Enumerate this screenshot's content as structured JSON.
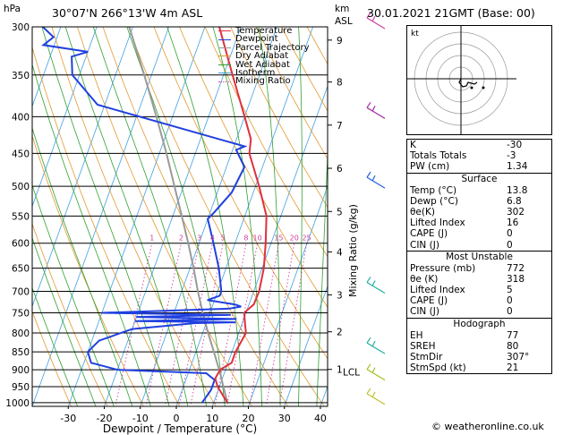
{
  "header": {
    "hpa_label": "hPa",
    "location": "30°07'N  266°13'W  4m  ASL",
    "km_label": "km",
    "asl_label": "ASL",
    "datetime": "30.01.2021  21GMT  (Base: 00)"
  },
  "chart_data": {
    "type": "skew-t log-p",
    "xlabel": "Dewpoint / Temperature (°C)",
    "ylabel": "Mixing Ratio (g/kg)",
    "pressure_levels": [
      300,
      350,
      400,
      450,
      500,
      550,
      600,
      650,
      700,
      750,
      800,
      850,
      900,
      950,
      1000
    ],
    "temp_ticks": [
      -30,
      -20,
      -10,
      0,
      10,
      20,
      30,
      40
    ],
    "xlim": [
      -40,
      42
    ],
    "ylim": [
      1012,
      300
    ],
    "height_ticks_km": [
      {
        "label": "9",
        "p": 313
      },
      {
        "label": "8",
        "p": 358
      },
      {
        "label": "7",
        "p": 411
      },
      {
        "label": "6",
        "p": 472
      },
      {
        "label": "5",
        "p": 542
      },
      {
        "label": "4",
        "p": 617
      },
      {
        "label": "3",
        "p": 708
      },
      {
        "label": "2",
        "p": 797
      },
      {
        "label": "1",
        "p": 899
      }
    ],
    "lcl": {
      "label": "LCL",
      "p": 906
    },
    "mixing_ratios": [
      1,
      2,
      3,
      4,
      5,
      8,
      10,
      15,
      20,
      25
    ],
    "mixing_ratio_label_p": 600,
    "temperature": [
      [
        1000,
        13.8
      ],
      [
        950,
        9.5
      ],
      [
        925,
        8
      ],
      [
        900,
        8.5
      ],
      [
        880,
        11
      ],
      [
        850,
        11
      ],
      [
        800,
        12
      ],
      [
        780,
        11
      ],
      [
        750,
        9.5
      ],
      [
        730,
        11.3
      ],
      [
        700,
        11.5
      ],
      [
        650,
        10.5
      ],
      [
        600,
        8.5
      ],
      [
        550,
        6
      ],
      [
        500,
        1
      ],
      [
        450,
        -5
      ],
      [
        430,
        -6
      ],
      [
        400,
        -10
      ],
      [
        350,
        -17.5
      ],
      [
        300,
        -26
      ]
    ],
    "dewpoint": [
      [
        1000,
        6.8
      ],
      [
        960,
        8
      ],
      [
        930,
        8
      ],
      [
        910,
        5
      ],
      [
        900,
        -20
      ],
      [
        880,
        -28
      ],
      [
        850,
        -30
      ],
      [
        820,
        -28
      ],
      [
        790,
        -20
      ],
      [
        775,
        -3
      ],
      [
        773,
        8
      ],
      [
        770,
        -20
      ],
      [
        765,
        8
      ],
      [
        760,
        -20
      ],
      [
        755,
        6
      ],
      [
        750,
        -30
      ],
      [
        740,
        5
      ],
      [
        735,
        8
      ],
      [
        730,
        6
      ],
      [
        720,
        -2
      ],
      [
        710,
        1
      ],
      [
        700,
        1
      ],
      [
        650,
        -2
      ],
      [
        600,
        -6
      ],
      [
        555,
        -10
      ],
      [
        545,
        -9
      ],
      [
        510,
        -6
      ],
      [
        470,
        -5
      ],
      [
        445,
        -9
      ],
      [
        440,
        -7
      ],
      [
        385,
        -52
      ],
      [
        350,
        -62
      ],
      [
        330,
        -64
      ],
      [
        325,
        -60
      ],
      [
        318,
        -73
      ],
      [
        310,
        -71
      ],
      [
        300,
        -75
      ]
    ],
    "parcel": [
      [
        1000,
        13.8
      ],
      [
        906,
        8.6
      ],
      [
        850,
        5
      ],
      [
        800,
        1.5
      ],
      [
        750,
        -2
      ],
      [
        700,
        -5.5
      ],
      [
        650,
        -9
      ],
      [
        600,
        -13
      ],
      [
        550,
        -17.5
      ],
      [
        500,
        -22.5
      ],
      [
        450,
        -28
      ],
      [
        400,
        -34.5
      ],
      [
        350,
        -42
      ],
      [
        300,
        -51
      ]
    ],
    "legend": [
      {
        "name": "Temperature",
        "color": "#e0303c",
        "style": "solid"
      },
      {
        "name": "Dewpoint",
        "color": "#2040e0",
        "style": "solid"
      },
      {
        "name": "Parcel Trajectory",
        "color": "#9a9a9a",
        "style": "solid"
      },
      {
        "name": "Dry Adiabat",
        "color": "#e09a30",
        "style": "solid"
      },
      {
        "name": "Wet Adiabat",
        "color": "#30a030",
        "style": "solid"
      },
      {
        "name": "Isotherm",
        "color": "#40a0e0",
        "style": "solid"
      },
      {
        "name": "Mixing Ratio",
        "color": "#d040a0",
        "style": "dotted"
      }
    ],
    "wind_barbs": [
      {
        "p": 300,
        "color": "#d040a0"
      },
      {
        "p": 400,
        "color": "#a030a0"
      },
      {
        "p": 500,
        "color": "#2060e0"
      },
      {
        "p": 700,
        "color": "#20b0a0"
      },
      {
        "p": 850,
        "color": "#20b0a0"
      },
      {
        "p": 925,
        "color": "#a0c020"
      },
      {
        "p": 1000,
        "color": "#c0c030"
      }
    ]
  },
  "hodograph": {
    "unit_label": "kt",
    "points": [
      [
        0,
        0
      ],
      [
        -2,
        -4
      ],
      [
        2,
        -9
      ],
      [
        6,
        -8
      ],
      [
        8,
        -4
      ],
      [
        15,
        -6
      ],
      [
        18,
        -4
      ]
    ],
    "storm": [
      [
        12,
        -10
      ],
      [
        25,
        -10
      ]
    ]
  },
  "stats": {
    "rows1": [
      {
        "k": "K",
        "v": "-30"
      },
      {
        "k": "Totals Totals",
        "v": "-3"
      },
      {
        "k": "PW (cm)",
        "v": "1.34"
      }
    ],
    "surface_title": "Surface",
    "surface": [
      {
        "k": "Temp (°C)",
        "v": "13.8"
      },
      {
        "k": "Dewp (°C)",
        "v": "6.8"
      },
      {
        "k": "θe(K)",
        "v": "302"
      },
      {
        "k": "Lifted Index",
        "v": "16"
      },
      {
        "k": "CAPE (J)",
        "v": "0"
      },
      {
        "k": "CIN (J)",
        "v": "0"
      }
    ],
    "mu_title": "Most Unstable",
    "mu": [
      {
        "k": "Pressure (mb)",
        "v": "772"
      },
      {
        "k": "θe (K)",
        "v": "318"
      },
      {
        "k": "Lifted Index",
        "v": "5"
      },
      {
        "k": "CAPE (J)",
        "v": "0"
      },
      {
        "k": "CIN (J)",
        "v": "0"
      }
    ],
    "hodo_title": "Hodograph",
    "hodo": [
      {
        "k": "EH",
        "v": "77"
      },
      {
        "k": "SREH",
        "v": "80"
      },
      {
        "k": "StmDir",
        "v": "307°"
      },
      {
        "k": "StmSpd (kt)",
        "v": "21"
      }
    ]
  },
  "footer": "© weatheronline.co.uk"
}
